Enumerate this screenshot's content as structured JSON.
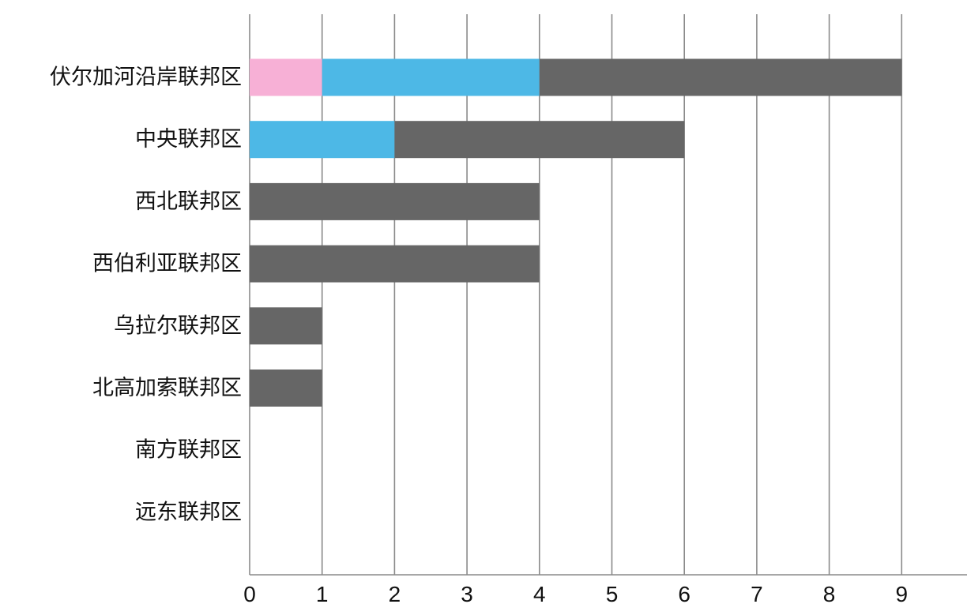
{
  "chart_data": {
    "type": "bar",
    "orientation": "horizontal",
    "stacked": true,
    "title": "",
    "xlabel": "",
    "ylabel": "",
    "xlim": [
      0,
      9
    ],
    "x_ticks": [
      "0",
      "1",
      "2",
      "3",
      "4",
      "5",
      "6",
      "7",
      "8",
      "9"
    ],
    "grid": true,
    "legend": "none",
    "categories": [
      "伏尔加河沿岸联邦区",
      "中央联邦区",
      "西北联邦区",
      "西伯利亚联邦区",
      "乌拉尔联邦区",
      "北高加索联邦区",
      "南方联邦区",
      "远东联邦区"
    ],
    "series": [
      {
        "color": "#f7b0d6",
        "values": [
          1,
          0,
          0,
          0,
          0,
          0,
          0,
          0
        ]
      },
      {
        "color": "#4db8e6",
        "values": [
          3,
          2,
          0,
          0,
          0,
          0,
          0,
          0
        ]
      },
      {
        "color": "#666666",
        "values": [
          5,
          4,
          4,
          4,
          1,
          1,
          0,
          0
        ]
      }
    ]
  }
}
